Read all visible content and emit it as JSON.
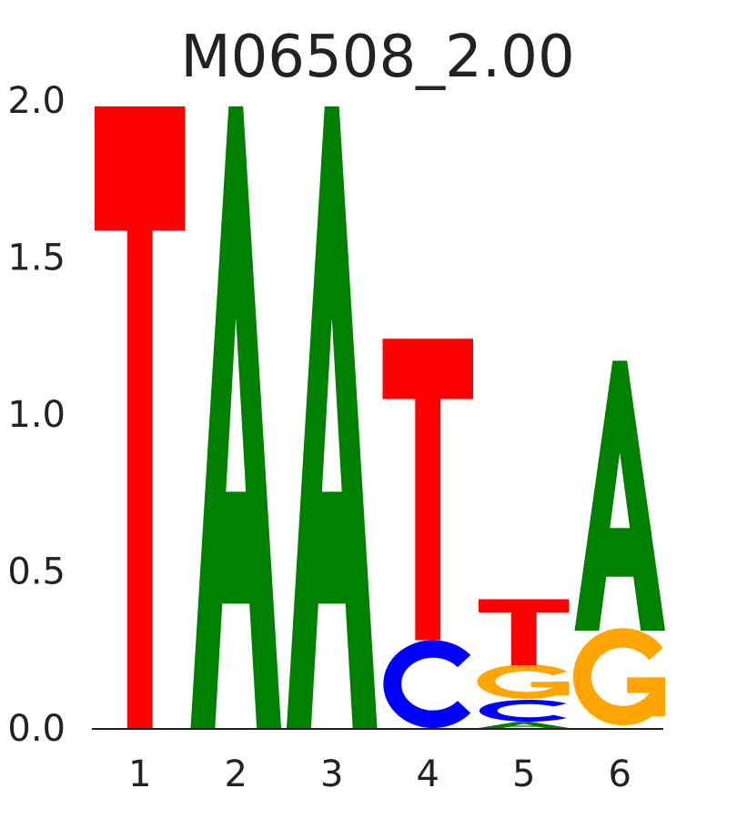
{
  "chart_data": {
    "type": "sequence-logo",
    "title": "M06508_2.00",
    "xlabel": "",
    "ylabel": "",
    "ylim": [
      0,
      2.0
    ],
    "y_ticks": [
      "0.0",
      "0.5",
      "1.0",
      "1.5",
      "2.0"
    ],
    "x_ticks": [
      "1",
      "2",
      "3",
      "4",
      "5",
      "6"
    ],
    "colors": {
      "A": "#008000",
      "C": "#0000ff",
      "G": "#ffa500",
      "T": "#ff0000"
    },
    "positions": [
      {
        "position": "1",
        "stack": [
          {
            "base": "T",
            "height": 1.98
          }
        ]
      },
      {
        "position": "2",
        "stack": [
          {
            "base": "A",
            "height": 1.98
          }
        ]
      },
      {
        "position": "3",
        "stack": [
          {
            "base": "A",
            "height": 1.98
          }
        ]
      },
      {
        "position": "4",
        "stack": [
          {
            "base": "C",
            "height": 0.28
          },
          {
            "base": "T",
            "height": 0.96
          }
        ]
      },
      {
        "position": "5",
        "stack": [
          {
            "base": "A",
            "height": 0.02
          },
          {
            "base": "C",
            "height": 0.07
          },
          {
            "base": "G",
            "height": 0.11
          },
          {
            "base": "T",
            "height": 0.21
          }
        ]
      },
      {
        "position": "6",
        "stack": [
          {
            "base": "G",
            "height": 0.31
          },
          {
            "base": "A",
            "height": 0.86
          }
        ]
      }
    ]
  }
}
